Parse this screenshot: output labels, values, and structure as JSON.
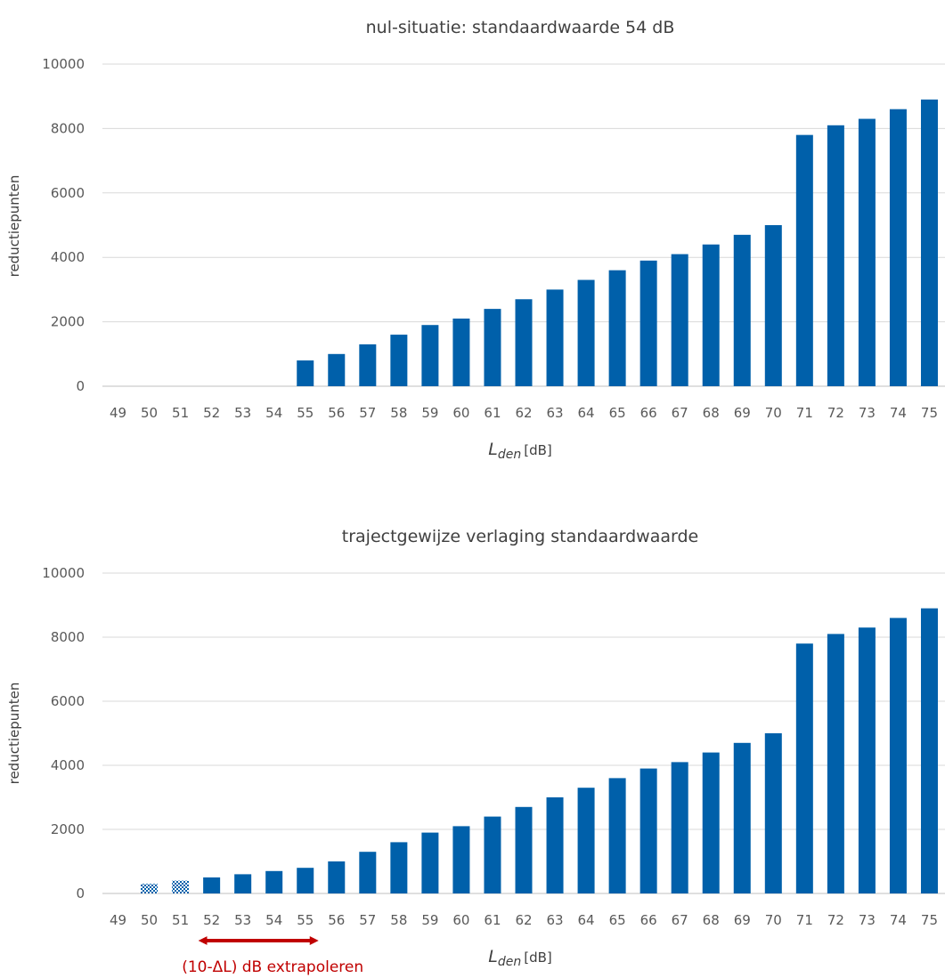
{
  "colors": {
    "bar": "#0060aa",
    "grid": "#d9d9d9",
    "axis": "#bfbfbf",
    "annotation": "#c00000"
  },
  "chart_data": [
    {
      "type": "bar",
      "title": "nul-situatie: standaardwaarde 54 dB",
      "ylabel": "reductiepunten",
      "xlabel_main": "L",
      "xlabel_sub": "den",
      "xlabel_unit": "[dB]",
      "ylim": [
        0,
        10000
      ],
      "yticks": [
        0,
        2000,
        4000,
        6000,
        8000,
        10000
      ],
      "grid": true,
      "categories": [
        "49",
        "50",
        "51",
        "52",
        "53",
        "54",
        "55",
        "56",
        "57",
        "58",
        "59",
        "60",
        "61",
        "62",
        "63",
        "64",
        "65",
        "66",
        "67",
        "68",
        "69",
        "70",
        "71",
        "72",
        "73",
        "74",
        "75"
      ],
      "values": [
        0,
        0,
        0,
        0,
        0,
        0,
        800,
        1000,
        1300,
        1600,
        1900,
        2100,
        2400,
        2700,
        3000,
        3300,
        3600,
        3900,
        4100,
        4400,
        4700,
        5000,
        7800,
        8100,
        8300,
        8600,
        8900
      ],
      "hatched": []
    },
    {
      "type": "bar",
      "title": "trajectgewijze verlaging standaardwaarde",
      "ylabel": "reductiepunten",
      "xlabel_main": "L",
      "xlabel_sub": "den",
      "xlabel_unit": "[dB]",
      "ylim": [
        0,
        10000
      ],
      "yticks": [
        0,
        2000,
        4000,
        6000,
        8000,
        10000
      ],
      "grid": true,
      "categories": [
        "49",
        "50",
        "51",
        "52",
        "53",
        "54",
        "55",
        "56",
        "57",
        "58",
        "59",
        "60",
        "61",
        "62",
        "63",
        "64",
        "65",
        "66",
        "67",
        "68",
        "69",
        "70",
        "71",
        "72",
        "73",
        "74",
        "75"
      ],
      "values": [
        0,
        300,
        400,
        500,
        600,
        700,
        800,
        1000,
        1300,
        1600,
        1900,
        2100,
        2400,
        2700,
        3000,
        3300,
        3600,
        3900,
        4100,
        4400,
        4700,
        5000,
        7800,
        8100,
        8300,
        8600,
        8900
      ],
      "hatched": [
        "50",
        "51"
      ],
      "annotation": {
        "text": "(10-ΔL) dB extrapoleren",
        "from": "52",
        "to": "55"
      }
    }
  ]
}
